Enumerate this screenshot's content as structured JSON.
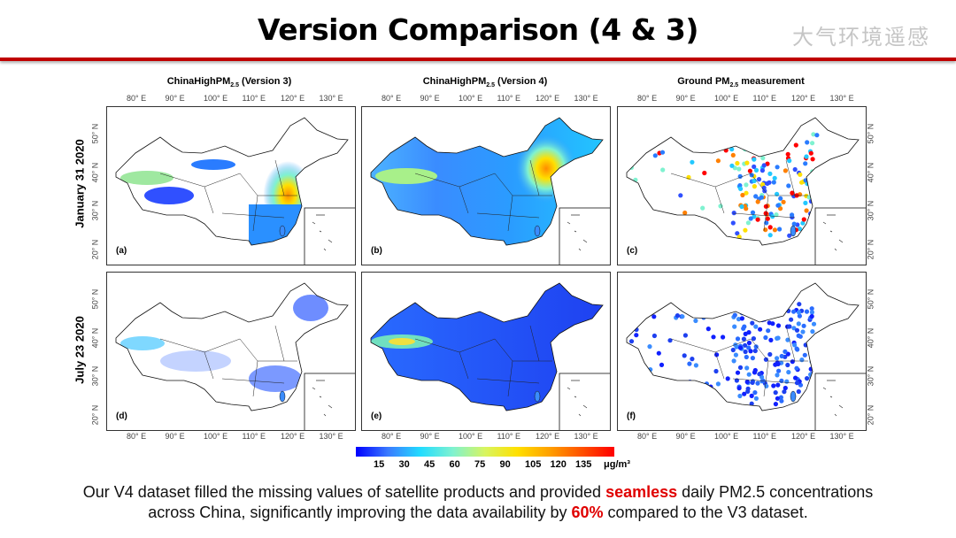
{
  "title": "Version Comparison (4 & 3)",
  "columns": [
    {
      "prefix": "ChinaHighPM",
      "sub": "2.5",
      "suffix": " (Version 3)"
    },
    {
      "prefix": "ChinaHighPM",
      "sub": "2.5",
      "suffix": " (Version 4)"
    },
    {
      "prefix": "Ground PM",
      "sub": "2.5",
      "suffix": " measurement"
    }
  ],
  "rows": [
    "January 31 2020",
    "July 23 2020"
  ],
  "panels": [
    "(a)",
    "(b)",
    "(c)",
    "(d)",
    "(e)",
    "(f)"
  ],
  "lon_ticks": [
    "80° E",
    "90° E",
    "100° E",
    "110° E",
    "120° E",
    "130° E"
  ],
  "lat_ticks": [
    "50° N",
    "40° N",
    "30° N",
    "20° N"
  ],
  "colorbar": {
    "ticks": [
      "15",
      "30",
      "45",
      "60",
      "75",
      "90",
      "105",
      "120",
      "135"
    ],
    "unit": "μg/m³",
    "min_color": "#0000ff",
    "max_color": "#ff0000"
  },
  "caption": {
    "line1_pre": "Our V4 dataset filled the missing values of satellite products and provided ",
    "line1_hl": "seamless",
    "line1_post": " daily PM2.5 concentrations",
    "line2_pre": "across China, significantly improving the data availability by ",
    "line2_hl": "60%",
    "line2_post": " compared to the V3 dataset."
  },
  "watermark": "大气环境遥感",
  "colors": {
    "accent_red": "#c00000",
    "highlight": "#e00000"
  }
}
